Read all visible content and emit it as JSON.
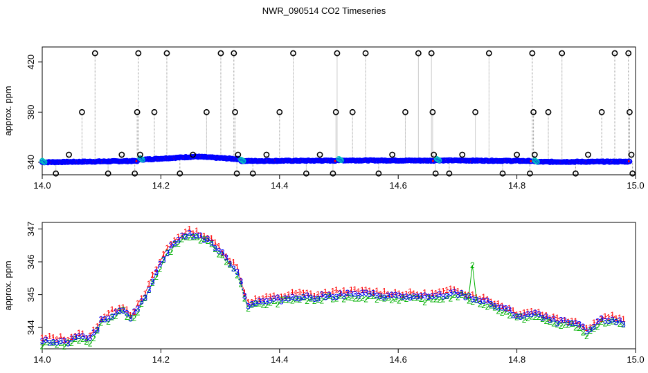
{
  "figure": {
    "title": "NWR_090514  CO2 Timeseries"
  },
  "chart_data": [
    {
      "type": "scatter",
      "title": "",
      "xlabel": "",
      "ylabel": "approx. ppm",
      "xlim": [
        14.0,
        15.0
      ],
      "ylim": [
        330,
        432
      ],
      "x_ticks": [
        14.0,
        14.2,
        14.4,
        14.6,
        14.8,
        15.0
      ],
      "x_tick_labels": [
        "14.0",
        "14.2",
        "14.4",
        "14.6",
        "14.8",
        "15.0"
      ],
      "y_ticks": [
        340,
        380,
        420
      ],
      "y_tick_labels": [
        "340",
        "380",
        "420"
      ],
      "grid": false,
      "colors": {
        "main": "#0000ff",
        "accent": "#00c0c0",
        "outlier": "#000000",
        "connector": "#999999"
      },
      "baseline_segments": [
        {
          "x": [
            14.0,
            14.16
          ],
          "y": [
            340.0,
            341.0
          ]
        },
        {
          "x": [
            14.165,
            14.26,
            14.33
          ],
          "y": [
            342.0,
            344.5,
            342.5
          ]
        },
        {
          "x": [
            14.335,
            14.495
          ],
          "y": [
            341.0,
            341.3
          ]
        },
        {
          "x": [
            14.5,
            14.66
          ],
          "y": [
            341.5,
            341.3
          ]
        },
        {
          "x": [
            14.665,
            14.825
          ],
          "y": [
            341.5,
            341.0
          ]
        },
        {
          "x": [
            14.83,
            14.99
          ],
          "y": [
            340.3,
            340.5
          ]
        }
      ],
      "spikes": [
        {
          "x": 14.023,
          "y": 331
        },
        {
          "x": 14.045,
          "y": 346
        },
        {
          "x": 14.067,
          "y": 380
        },
        {
          "x": 14.089,
          "y": 427
        },
        {
          "x": 14.111,
          "y": 331
        },
        {
          "x": 14.134,
          "y": 346
        },
        {
          "x": 14.156,
          "y": 331
        },
        {
          "x": 14.16,
          "y": 380
        },
        {
          "x": 14.162,
          "y": 427
        },
        {
          "x": 14.165,
          "y": 346
        },
        {
          "x": 14.189,
          "y": 380
        },
        {
          "x": 14.21,
          "y": 427
        },
        {
          "x": 14.232,
          "y": 331
        },
        {
          "x": 14.254,
          "y": 346
        },
        {
          "x": 14.277,
          "y": 380
        },
        {
          "x": 14.301,
          "y": 427
        },
        {
          "x": 14.323,
          "y": 427
        },
        {
          "x": 14.325,
          "y": 380
        },
        {
          "x": 14.328,
          "y": 331
        },
        {
          "x": 14.33,
          "y": 346
        },
        {
          "x": 14.355,
          "y": 331
        },
        {
          "x": 14.378,
          "y": 346
        },
        {
          "x": 14.4,
          "y": 380
        },
        {
          "x": 14.423,
          "y": 427
        },
        {
          "x": 14.445,
          "y": 331
        },
        {
          "x": 14.468,
          "y": 346
        },
        {
          "x": 14.49,
          "y": 331
        },
        {
          "x": 14.495,
          "y": 380
        },
        {
          "x": 14.497,
          "y": 427
        },
        {
          "x": 14.523,
          "y": 380
        },
        {
          "x": 14.545,
          "y": 427
        },
        {
          "x": 14.567,
          "y": 331
        },
        {
          "x": 14.59,
          "y": 346
        },
        {
          "x": 14.612,
          "y": 380
        },
        {
          "x": 14.634,
          "y": 427
        },
        {
          "x": 14.656,
          "y": 427
        },
        {
          "x": 14.658,
          "y": 380
        },
        {
          "x": 14.66,
          "y": 346
        },
        {
          "x": 14.663,
          "y": 331
        },
        {
          "x": 14.686,
          "y": 331
        },
        {
          "x": 14.708,
          "y": 346
        },
        {
          "x": 14.73,
          "y": 380
        },
        {
          "x": 14.753,
          "y": 427
        },
        {
          "x": 14.776,
          "y": 331
        },
        {
          "x": 14.8,
          "y": 346
        },
        {
          "x": 14.822,
          "y": 331
        },
        {
          "x": 14.826,
          "y": 427
        },
        {
          "x": 14.828,
          "y": 380
        },
        {
          "x": 14.83,
          "y": 346
        },
        {
          "x": 14.853,
          "y": 380
        },
        {
          "x": 14.876,
          "y": 427
        },
        {
          "x": 14.899,
          "y": 331
        },
        {
          "x": 14.92,
          "y": 346
        },
        {
          "x": 14.943,
          "y": 380
        },
        {
          "x": 14.965,
          "y": 427
        },
        {
          "x": 14.988,
          "y": 427
        },
        {
          "x": 14.99,
          "y": 380
        },
        {
          "x": 14.993,
          "y": 346
        },
        {
          "x": 14.995,
          "y": 331
        }
      ]
    },
    {
      "type": "line",
      "title": "",
      "xlabel": "",
      "ylabel": "approx. ppm",
      "xlim": [
        14.0,
        15.0
      ],
      "ylim": [
        343.35,
        347.2
      ],
      "x_ticks": [
        14.0,
        14.2,
        14.4,
        14.6,
        14.8,
        15.0
      ],
      "x_tick_labels": [
        "14.0",
        "14.2",
        "14.4",
        "14.6",
        "14.8",
        "15.0"
      ],
      "y_ticks": [
        344,
        345,
        346,
        347
      ],
      "y_tick_labels": [
        "344",
        "345",
        "346",
        "347"
      ],
      "grid": false,
      "series": [
        {
          "symbol": "1",
          "color": "#ff0000",
          "offset": 0.1
        },
        {
          "symbol": "2",
          "color": "#00b000",
          "offset": -0.08
        },
        {
          "symbol": "3",
          "color": "#0000ff",
          "offset": 0.0
        }
      ],
      "x": [
        14.0,
        14.02,
        14.04,
        14.06,
        14.08,
        14.1,
        14.12,
        14.135,
        14.15,
        14.17,
        14.19,
        14.21,
        14.23,
        14.25,
        14.27,
        14.29,
        14.31,
        14.33,
        14.345,
        14.36,
        14.38,
        14.4,
        14.43,
        14.46,
        14.5,
        14.55,
        14.6,
        14.65,
        14.7,
        14.75,
        14.78,
        14.8,
        14.83,
        14.86,
        14.9,
        14.92,
        14.94,
        14.96,
        14.98
      ],
      "y": [
        343.55,
        343.6,
        343.55,
        343.7,
        343.6,
        344.2,
        344.4,
        344.6,
        344.3,
        344.8,
        345.6,
        346.3,
        346.7,
        346.85,
        346.75,
        346.5,
        346.1,
        345.7,
        344.7,
        344.75,
        344.8,
        344.85,
        344.95,
        344.9,
        345.0,
        345.0,
        344.95,
        344.9,
        345.05,
        344.75,
        344.55,
        344.35,
        344.4,
        344.2,
        344.1,
        343.85,
        344.2,
        344.25,
        344.1
      ],
      "annotations": [
        {
          "x": 14.725,
          "y": 345.9,
          "symbol": "2",
          "color": "#00b000"
        }
      ]
    }
  ]
}
